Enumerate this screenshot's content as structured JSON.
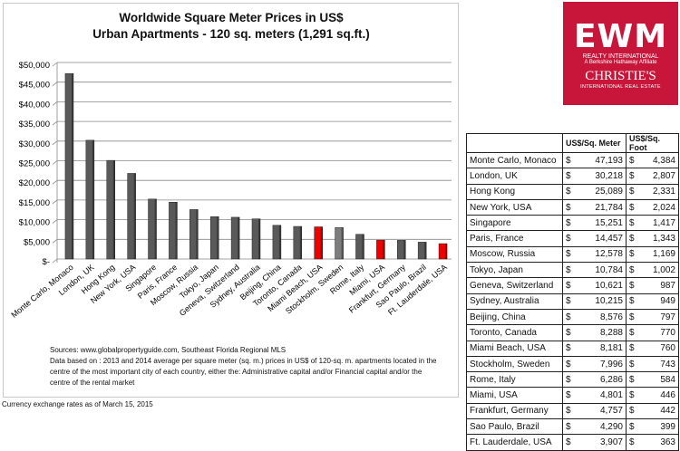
{
  "chart_data": {
    "type": "bar",
    "title": "Worldwide Square Meter Prices in US$",
    "subtitle": "Urban Apartments - 120 sq. meters (1,291 sq.ft.)",
    "categories": [
      "Monte Carlo, Monaco",
      "London, UK",
      "Hong Kong",
      "New York, USA",
      "Singapore",
      "Paris, France",
      "Moscow, Russia",
      "Tokyo, Japan",
      "Geneva, Switzerland",
      "Sydney, Australia",
      "Beijing, China",
      "Toronto, Canada",
      "Miami Beach, USA",
      "Stockholm, Sweden",
      "Rome, Italy",
      "Miami, USA",
      "Frankfurt, Germany",
      "Sao Paulo, Brazil",
      "Ft. Lauderdale, USA"
    ],
    "values": [
      47193,
      30218,
      25089,
      21784,
      15251,
      14457,
      12578,
      10784,
      10621,
      10215,
      8576,
      8288,
      8181,
      7996,
      6286,
      4801,
      4757,
      4290,
      3907
    ],
    "highlighted": [
      "Miami Beach, USA",
      "Miami, USA",
      "Ft. Lauderdale, USA"
    ],
    "colors": {
      "default": "#5a5a5a",
      "highlight": "#ee0000",
      "stockholm": "#7d7d7d"
    },
    "ylim": [
      0,
      50000
    ],
    "yticks": [
      "$-",
      "$5,000",
      "$10,000",
      "$15,000",
      "$20,000",
      "$25,000",
      "$30,000",
      "$35,000",
      "$40,000",
      "$45,000",
      "$50,000"
    ],
    "grid": true
  },
  "notes": {
    "sources": "Sources: www.globalpropertyguide.com, Southeast Florida Regional MLS",
    "data_based": "Data based on :  2013 and 2014 average per square meter (sq. m.) prices in US$ of 120-sq. m. apartments located in the centre of the most important city of each country, either the: Administrative capital and/or Financial capital and/or the centre of the rental market",
    "currency": "Currency exchange rates as of March 15, 2015"
  },
  "logo": {
    "brand": "EWM",
    "line1": "REALTY INTERNATIONAL",
    "line2": "A Berkshire Hathaway Affiliate",
    "line3": "CHRISTIE'S",
    "line4": "INTERNATIONAL REAL ESTATE",
    "color": "#c8163b"
  },
  "table": {
    "headers": [
      "",
      "US$/Sq. Meter",
      "US$/Sq. Foot"
    ],
    "currency": "$",
    "rows": [
      [
        "Monte Carlo, Monaco",
        "47,193",
        "4,384"
      ],
      [
        "London, UK",
        "30,218",
        "2,807"
      ],
      [
        "Hong Kong",
        "25,089",
        "2,331"
      ],
      [
        "New York, USA",
        "21,784",
        "2,024"
      ],
      [
        "Singapore",
        "15,251",
        "1,417"
      ],
      [
        "Paris, France",
        "14,457",
        "1,343"
      ],
      [
        "Moscow, Russia",
        "12,578",
        "1,169"
      ],
      [
        "Tokyo, Japan",
        "10,784",
        "1,002"
      ],
      [
        "Geneva, Switzerland",
        "10,621",
        "987"
      ],
      [
        "Sydney, Australia",
        "10,215",
        "949"
      ],
      [
        "Beijing, China",
        "8,576",
        "797"
      ],
      [
        "Toronto, Canada",
        "8,288",
        "770"
      ],
      [
        "Miami Beach, USA",
        "8,181",
        "760"
      ],
      [
        "Stockholm, Sweden",
        "7,996",
        "743"
      ],
      [
        "Rome, Italy",
        "6,286",
        "584"
      ],
      [
        "Miami, USA",
        "4,801",
        "446"
      ],
      [
        "Frankfurt, Germany",
        "4,757",
        "442"
      ],
      [
        "Sao Paulo, Brazil",
        "4,290",
        "399"
      ],
      [
        "Ft. Lauderdale, USA",
        "3,907",
        "363"
      ]
    ]
  }
}
